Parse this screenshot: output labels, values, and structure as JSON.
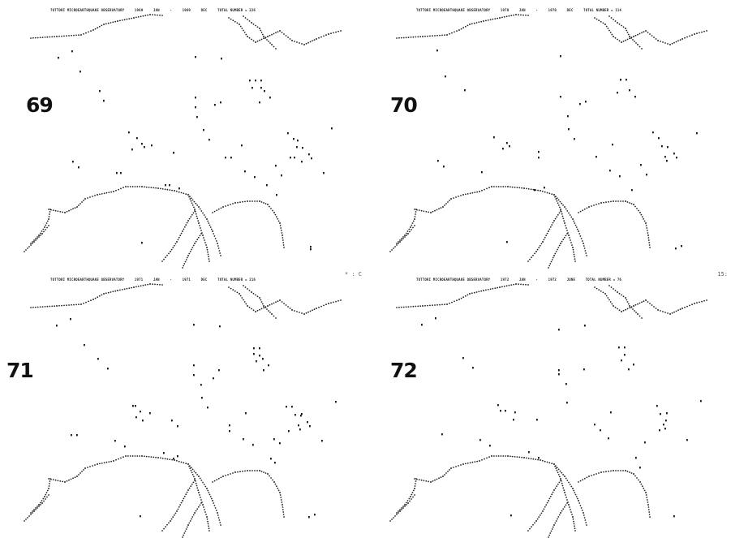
{
  "panels": [
    {
      "year_label": "69",
      "header": {
        "station": "TOTTORI MICROEARTHQUAKE OBSERVATORY",
        "from_year": "1969",
        "from_month": "JAN",
        "to_year": "1969",
        "to_month": "DEC",
        "total": "TOTAL NUMBER = 226"
      },
      "corner": ""
    },
    {
      "year_label": "70",
      "header": {
        "station": "TOTTORI MICROEARTHQUAKE OBSERVATORY",
        "from_year": "1970",
        "from_month": "JAN",
        "to_year": "1970",
        "to_month": "DEC",
        "total": "TOTAL NUMBER = 114"
      },
      "corner": ""
    },
    {
      "year_label": "71",
      "header": {
        "station": "TOTTORI MICROEARTHQUAKE OBSERVATORY",
        "from_year": "1971",
        "from_month": "JAN",
        "to_year": "1971",
        "to_month": "DEC",
        "total": "TOTAL NUMBER = 216"
      },
      "corner": "* : C"
    },
    {
      "year_label": "72",
      "header": {
        "station": "TOTTORI MICROEARTHQUAKE OBSERVATORY",
        "from_year": "1972",
        "from_month": "JAN",
        "to_year": "1972",
        "to_month": "JUNE",
        "total": "TOTAL NUMBER = 76"
      },
      "corner": "15:"
    }
  ]
}
